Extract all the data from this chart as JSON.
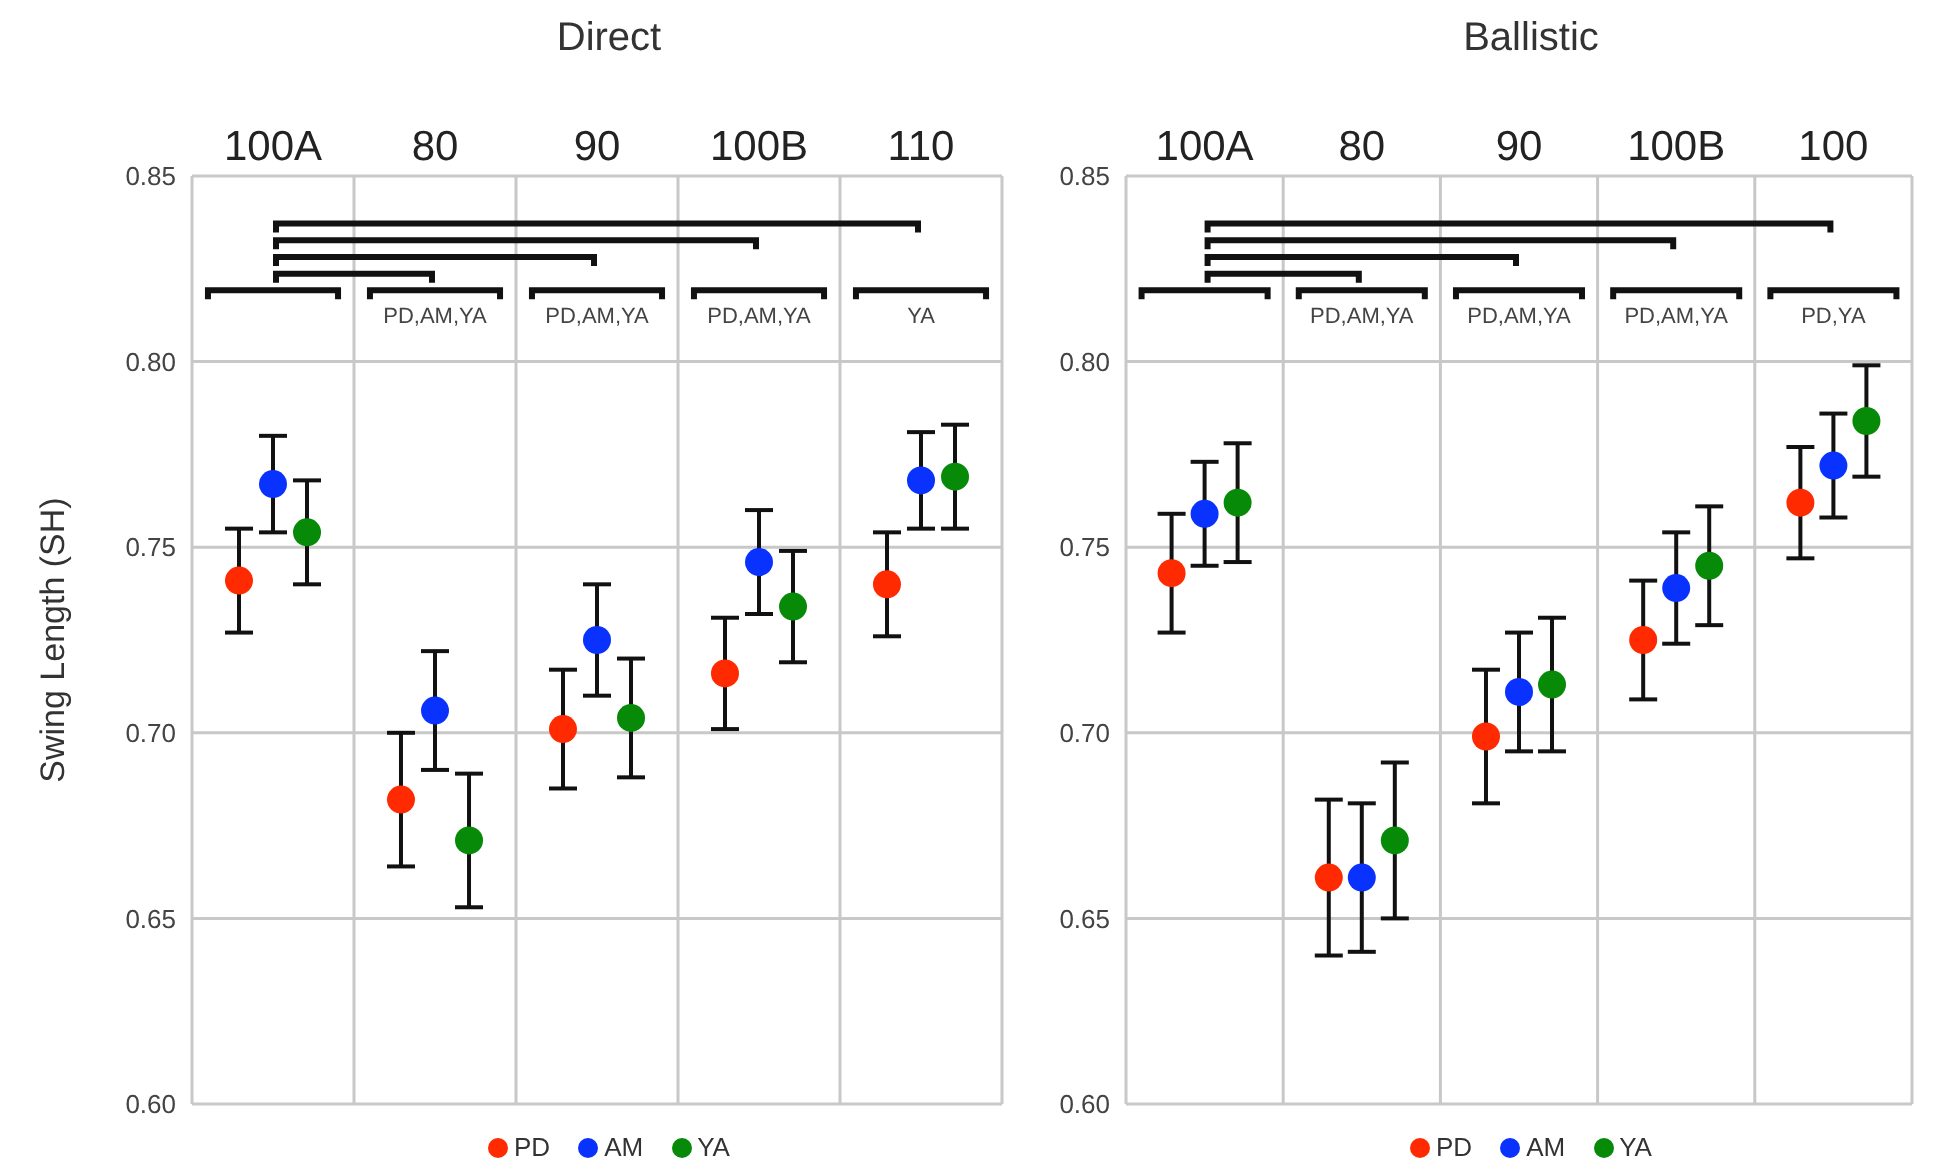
{
  "chart_data": [
    {
      "type": "scatter",
      "title": "Direct",
      "ylabel": "Swing Length (SH)",
      "categories": [
        "100A",
        "80",
        "90",
        "100B",
        "110"
      ],
      "series": [
        {
          "name": "PD",
          "color": "#ff2a00",
          "values": [
            0.741,
            0.682,
            0.701,
            0.716,
            0.74
          ],
          "errors": [
            0.014,
            0.018,
            0.016,
            0.015,
            0.014
          ]
        },
        {
          "name": "AM",
          "color": "#0a32ff",
          "values": [
            0.767,
            0.706,
            0.725,
            0.746,
            0.768
          ],
          "errors": [
            0.013,
            0.016,
            0.015,
            0.014,
            0.013
          ]
        },
        {
          "name": "YA",
          "color": "#078a07",
          "values": [
            0.754,
            0.671,
            0.704,
            0.734,
            0.769
          ],
          "errors": [
            0.014,
            0.018,
            0.016,
            0.015,
            0.014
          ]
        }
      ],
      "ylim": [
        0.6,
        0.85
      ],
      "yticks": [
        {
          "value": 0.6,
          "label": "0.60"
        },
        {
          "value": 0.65,
          "label": "0.65"
        },
        {
          "value": 0.7,
          "label": "0.70"
        },
        {
          "value": 0.75,
          "label": "0.75"
        },
        {
          "value": 0.8,
          "label": "0.80"
        },
        {
          "value": 0.85,
          "label": "0.85"
        }
      ],
      "annotations": [
        "PD,AM,YA",
        "PD,AM,YA",
        "PD,AM,YA",
        "YA"
      ],
      "grid": true,
      "legend": "bottom",
      "marker": "circle"
    },
    {
      "type": "scatter",
      "title": "Ballistic",
      "categories": [
        "100A",
        "80",
        "90",
        "100B",
        "100"
      ],
      "series": [
        {
          "name": "PD",
          "color": "#ff2a00",
          "values": [
            0.743,
            0.661,
            0.699,
            0.725,
            0.762
          ],
          "errors": [
            0.016,
            0.021,
            0.018,
            0.016,
            0.015
          ]
        },
        {
          "name": "AM",
          "color": "#0a32ff",
          "values": [
            0.759,
            0.661,
            0.711,
            0.739,
            0.772
          ],
          "errors": [
            0.014,
            0.02,
            0.016,
            0.015,
            0.014
          ]
        },
        {
          "name": "YA",
          "color": "#078a07",
          "values": [
            0.762,
            0.671,
            0.713,
            0.745,
            0.784
          ],
          "errors": [
            0.016,
            0.021,
            0.018,
            0.016,
            0.015
          ]
        }
      ],
      "ylim": [
        0.6,
        0.85
      ],
      "yticks": [
        {
          "value": 0.6,
          "label": "0.60"
        },
        {
          "value": 0.65,
          "label": "0.65"
        },
        {
          "value": 0.7,
          "label": "0.70"
        },
        {
          "value": 0.75,
          "label": "0.75"
        },
        {
          "value": 0.8,
          "label": "0.80"
        },
        {
          "value": 0.85,
          "label": "0.85"
        }
      ],
      "annotations": [
        "PD,AM,YA",
        "PD,AM,YA",
        "PD,AM,YA",
        "PD,YA"
      ],
      "grid": true,
      "legend": "bottom",
      "marker": "circle"
    }
  ]
}
